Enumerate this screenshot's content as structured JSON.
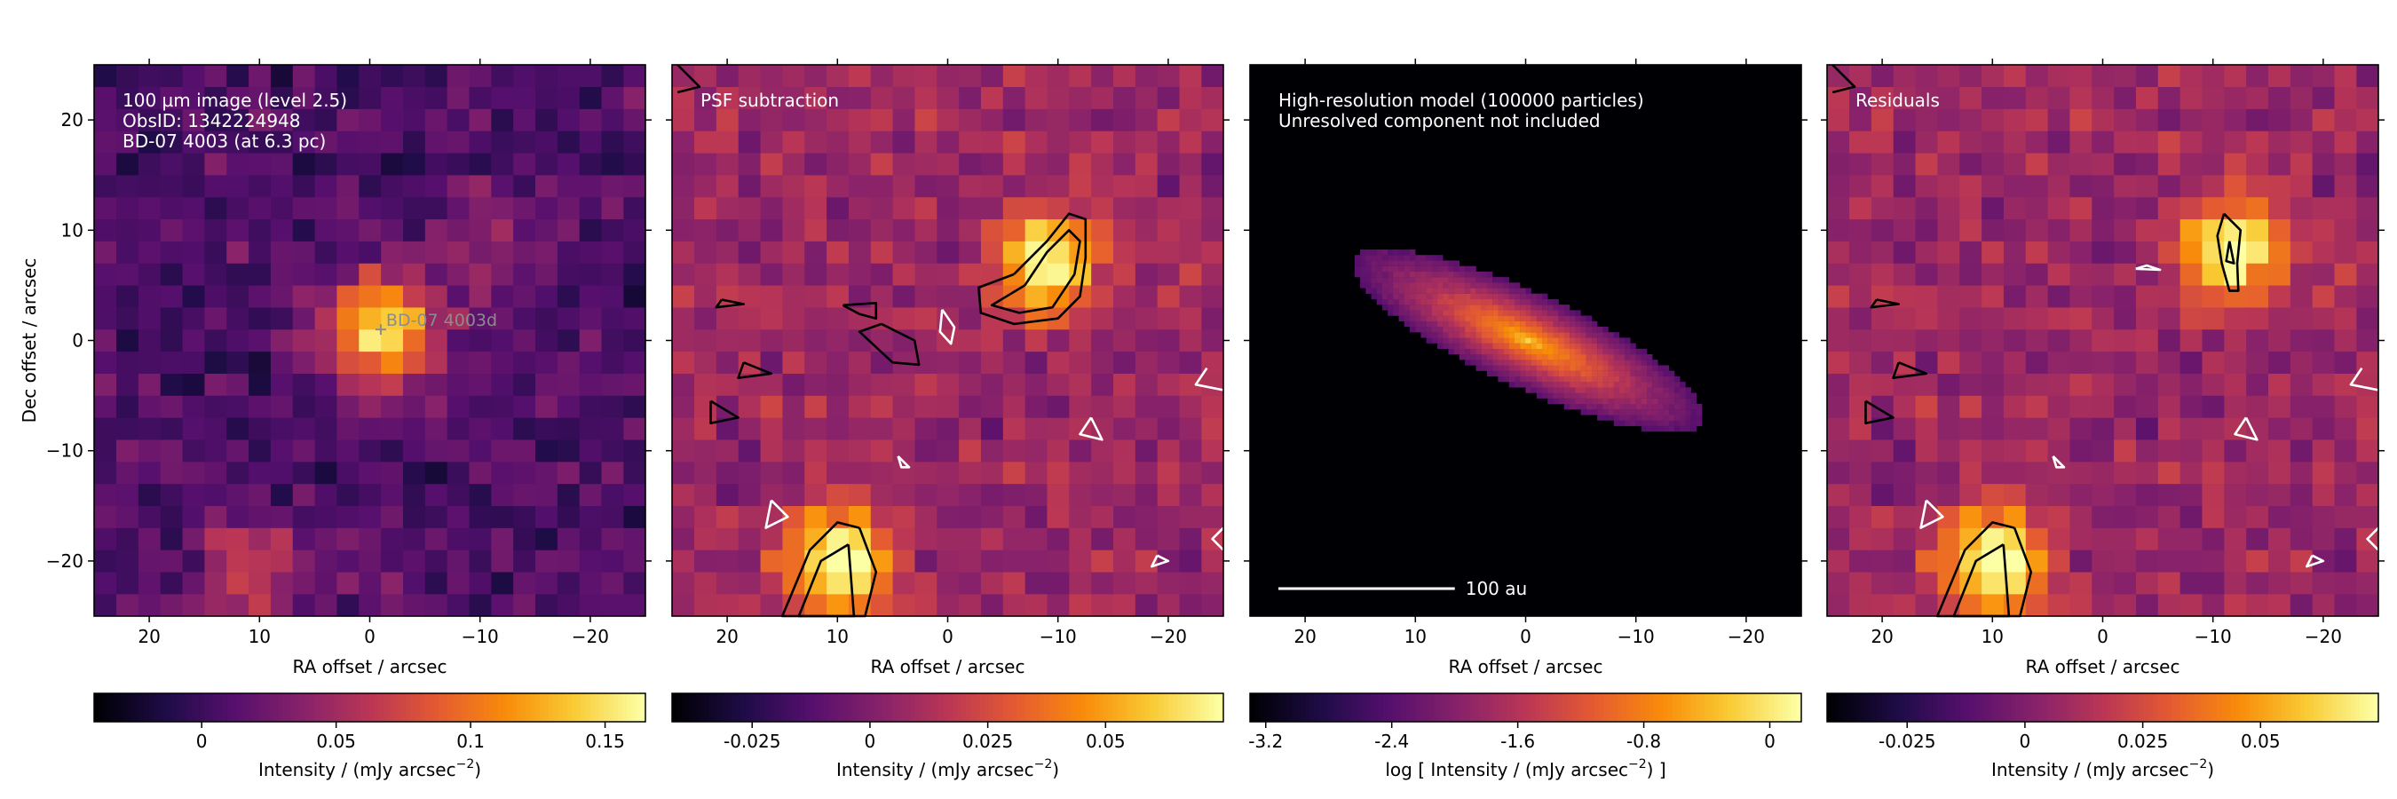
{
  "chart_data": [
    {
      "type": "heatmap",
      "panel": "observed image",
      "annotation_lines": [
        "100 µm image (level 2.5)",
        "ObsID: 1342224948",
        "BD-07 4003 (at 6.3 pc)"
      ],
      "source_marker_label": "BD-07  4003d",
      "source_marker_position": [
        -1,
        1
      ],
      "xlabel": "RA offset / arcsec",
      "ylabel": "Dec offset / arcsec",
      "xlim": [
        25,
        -25
      ],
      "ylim": [
        -25,
        25
      ],
      "xticks": [
        20,
        10,
        0,
        -10,
        -20
      ],
      "xtick_labels": [
        "20",
        "10",
        "0",
        "−10",
        "−20"
      ],
      "yticks": [
        20,
        10,
        0,
        -10,
        -20
      ],
      "ytick_labels": [
        "20",
        "10",
        "0",
        "−10",
        "−20"
      ],
      "pixel_size_arcsec": 2,
      "colormap": "inferno",
      "features": [
        {
          "description": "bright compact source",
          "ra": -1,
          "dec": 1,
          "peak": 0.165
        },
        {
          "description": "secondary emission",
          "ra": 11,
          "dec": -21,
          "peak": 0.09
        },
        {
          "description": "faint extension",
          "ra": -11,
          "dec": 8,
          "peak": 0.06
        }
      ],
      "colorbar": {
        "label": "Intensity / (mJy arcsec",
        "label_superscript": "−2",
        "label_suffix": ")",
        "range": [
          -0.04,
          0.165
        ],
        "ticks": [
          0,
          0.05,
          0.1,
          0.15
        ],
        "tick_labels": [
          "0",
          "0.05",
          "0.1",
          "0.15"
        ]
      }
    },
    {
      "type": "heatmap",
      "panel": "PSF subtraction",
      "annotation_lines": [
        "PSF subtraction"
      ],
      "xlabel": "RA offset / arcsec",
      "xlim": [
        25,
        -25
      ],
      "ylim": [
        -25,
        25
      ],
      "xticks": [
        20,
        10,
        0,
        -10,
        -20
      ],
      "xtick_labels": [
        "20",
        "10",
        "0",
        "−10",
        "−20"
      ],
      "pixel_size_arcsec": 2,
      "colormap": "inferno",
      "features": [
        {
          "description": "residual blob",
          "ra": -9,
          "dec": 7,
          "peak": 0.07
        },
        {
          "description": "residual blob",
          "ra": 10,
          "dec": -20,
          "peak": 0.07
        }
      ],
      "contours": [
        {
          "color": "black",
          "path": [
            [
              -6,
              6
            ],
            [
              -9,
              9
            ],
            [
              -11,
              11.5
            ],
            [
              -12.5,
              11
            ],
            [
              -12.5,
              7.5
            ],
            [
              -12,
              4
            ],
            [
              -10,
              2
            ],
            [
              -6,
              1.5
            ],
            [
              -3,
              2.5
            ],
            [
              -2.8,
              4.8
            ],
            [
              -6,
              6
            ]
          ]
        },
        {
          "color": "black",
          "path": [
            [
              -7,
              5
            ],
            [
              -9,
              8
            ],
            [
              -11,
              10
            ],
            [
              -12,
              9
            ],
            [
              -11.5,
              6
            ],
            [
              -9.5,
              3
            ],
            [
              -6.5,
              2.5
            ],
            [
              -4,
              3.2
            ],
            [
              -7,
              5
            ]
          ]
        },
        {
          "color": "black",
          "path": [
            [
              8,
              -17
            ],
            [
              10,
              -16.5
            ],
            [
              12.5,
              -19
            ],
            [
              15,
              -25
            ],
            [
              7.5,
              -25
            ],
            [
              6.5,
              -21
            ],
            [
              8,
              -17
            ]
          ]
        },
        {
          "color": "black",
          "path": [
            [
              9,
              -18.5
            ],
            [
              11.5,
              -20
            ],
            [
              13.5,
              -25
            ],
            [
              8.5,
              -25
            ],
            [
              9,
              -18.5
            ]
          ]
        },
        {
          "color": "black",
          "path": [
            [
              6,
              1.5
            ],
            [
              3,
              0
            ],
            [
              2.6,
              -2.2
            ],
            [
              5,
              -2
            ],
            [
              8,
              0.8
            ],
            [
              6,
              1.5
            ]
          ]
        },
        {
          "color": "black",
          "path": [
            [
              9.5,
              3.2
            ],
            [
              6.5,
              3.4
            ],
            [
              6.5,
              2
            ],
            [
              8,
              2.4
            ],
            [
              9.5,
              3.2
            ]
          ]
        },
        {
          "color": "black",
          "path": [
            [
              20.5,
              3.7
            ],
            [
              18.5,
              3.3
            ],
            [
              21,
              3
            ],
            [
              20.5,
              3.7
            ]
          ]
        },
        {
          "color": "black",
          "path": [
            [
              18.5,
              -2
            ],
            [
              16,
              -3
            ],
            [
              19,
              -3.4
            ],
            [
              18.5,
              -2
            ]
          ]
        },
        {
          "color": "black",
          "path": [
            [
              21.5,
              -5.5
            ],
            [
              19,
              -7
            ],
            [
              21.5,
              -7.5
            ],
            [
              21.5,
              -5.5
            ]
          ]
        },
        {
          "color": "black",
          "path": [
            [
              24.5,
              25
            ],
            [
              22.5,
              23
            ],
            [
              24.5,
              22.5
            ]
          ]
        },
        {
          "color": "white",
          "path": [
            [
              0.5,
              2.8
            ],
            [
              -0.6,
              1.2
            ],
            [
              -0.3,
              -0.3
            ],
            [
              0.7,
              0.8
            ],
            [
              0.5,
              2.8
            ]
          ]
        },
        {
          "color": "white",
          "path": [
            [
              16,
              -14.5
            ],
            [
              14.5,
              -16
            ],
            [
              16.5,
              -17
            ],
            [
              16,
              -14.5
            ]
          ]
        },
        {
          "color": "white",
          "path": [
            [
              4.5,
              -10.5
            ],
            [
              3.5,
              -11.5
            ],
            [
              4.2,
              -11.5
            ],
            [
              4.5,
              -10.5
            ]
          ]
        },
        {
          "color": "white",
          "path": [
            [
              -13,
              -7
            ],
            [
              -12,
              -8.5
            ],
            [
              -14,
              -9
            ],
            [
              -13,
              -7
            ]
          ]
        },
        {
          "color": "white",
          "path": [
            [
              -23.5,
              -2.5
            ],
            [
              -22.5,
              -4
            ],
            [
              -25,
              -4.5
            ]
          ]
        },
        {
          "color": "white",
          "path": [
            [
              -19,
              -19.5
            ],
            [
              -20,
              -20
            ],
            [
              -18.5,
              -20.5
            ],
            [
              -19,
              -19.5
            ]
          ]
        },
        {
          "color": "white",
          "path": [
            [
              -25,
              -17
            ],
            [
              -24,
              -18
            ],
            [
              -25,
              -19
            ]
          ]
        }
      ],
      "colorbar": {
        "label": "Intensity / (mJy arcsec",
        "label_superscript": "−2",
        "label_suffix": ")",
        "range": [
          -0.042,
          0.075
        ],
        "ticks": [
          -0.025,
          0,
          0.025,
          0.05
        ],
        "tick_labels": [
          "-0.025",
          "0",
          "0.025",
          "0.05"
        ]
      }
    },
    {
      "type": "heatmap",
      "panel": "high-resolution model",
      "annotation_lines": [
        "High-resolution model (100000 particles)",
        "Unresolved component not included"
      ],
      "scalebar_label": "100 au",
      "scalebar_length_arcsec": 16,
      "xlabel": "RA offset / arcsec",
      "xlim": [
        25,
        -25
      ],
      "ylim": [
        -25,
        25
      ],
      "xticks": [
        20,
        10,
        0,
        -10,
        -20
      ],
      "xtick_labels": [
        "20",
        "10",
        "0",
        "−10",
        "−20"
      ],
      "colormap": "inferno",
      "disc_model": {
        "center": [
          0,
          0
        ],
        "semi_major_arcsec": 17.5,
        "semi_minor_arcsec": 4.3,
        "position_angle_deg": 25
      },
      "colorbar": {
        "label": "log [ Intensity / (mJy arcsec",
        "label_superscript": "−2",
        "label_suffix": ") ]",
        "range": [
          -3.3,
          0.2
        ],
        "ticks": [
          -3.2,
          -2.4,
          -1.6,
          -0.8,
          0
        ],
        "tick_labels": [
          "-3.2",
          "-2.4",
          "-1.6",
          "-0.8",
          "0"
        ]
      }
    },
    {
      "type": "heatmap",
      "panel": "residuals",
      "annotation_lines": [
        "Residuals"
      ],
      "xlabel": "RA offset / arcsec",
      "xlim": [
        25,
        -25
      ],
      "ylim": [
        -25,
        25
      ],
      "xticks": [
        20,
        10,
        0,
        -10,
        -20
      ],
      "xtick_labels": [
        "20",
        "10",
        "0",
        "−10",
        "−20"
      ],
      "pixel_size_arcsec": 2,
      "colormap": "inferno",
      "features": [
        {
          "description": "residual blob",
          "ra": -11.5,
          "dec": 8,
          "peak": 0.07
        },
        {
          "description": "residual blob",
          "ra": 10,
          "dec": -20,
          "peak": 0.07
        }
      ],
      "contours": [
        {
          "color": "black",
          "path": [
            [
              -11,
              11.5
            ],
            [
              -12.5,
              10
            ],
            [
              -12.2,
              7
            ],
            [
              -12.3,
              4.5
            ],
            [
              -11.5,
              4.5
            ],
            [
              -10.8,
              7
            ],
            [
              -10.4,
              9.5
            ],
            [
              -11,
              11.5
            ]
          ]
        },
        {
          "color": "black",
          "path": [
            [
              -11.5,
              9
            ],
            [
              -11.9,
              7
            ],
            [
              -11.2,
              7.2
            ],
            [
              -11.5,
              9
            ]
          ]
        },
        {
          "color": "black",
          "path": [
            [
              8,
              -17
            ],
            [
              10,
              -16.5
            ],
            [
              12.5,
              -19
            ],
            [
              15,
              -25
            ],
            [
              7.5,
              -25
            ],
            [
              6.5,
              -21
            ],
            [
              8,
              -17
            ]
          ]
        },
        {
          "color": "black",
          "path": [
            [
              9,
              -18.5
            ],
            [
              11.5,
              -20
            ],
            [
              13.5,
              -25
            ],
            [
              8.5,
              -25
            ],
            [
              9,
              -18.5
            ]
          ]
        },
        {
          "color": "black",
          "path": [
            [
              20.5,
              3.7
            ],
            [
              18.5,
              3.3
            ],
            [
              21,
              3
            ],
            [
              20.5,
              3.7
            ]
          ]
        },
        {
          "color": "black",
          "path": [
            [
              18.5,
              -2
            ],
            [
              16,
              -3
            ],
            [
              19,
              -3.4
            ],
            [
              18.5,
              -2
            ]
          ]
        },
        {
          "color": "black",
          "path": [
            [
              21.5,
              -5.5
            ],
            [
              19,
              -7
            ],
            [
              21.5,
              -7.5
            ],
            [
              21.5,
              -5.5
            ]
          ]
        },
        {
          "color": "black",
          "path": [
            [
              24.5,
              25
            ],
            [
              22.5,
              23
            ],
            [
              24.5,
              22.5
            ]
          ]
        },
        {
          "color": "white",
          "path": [
            [
              -3,
              6.5
            ],
            [
              -4,
              6.8
            ],
            [
              -5.2,
              6.4
            ],
            [
              -3,
              6.5
            ]
          ]
        },
        {
          "color": "white",
          "path": [
            [
              16,
              -14.5
            ],
            [
              14.5,
              -16
            ],
            [
              16.5,
              -17
            ],
            [
              16,
              -14.5
            ]
          ]
        },
        {
          "color": "white",
          "path": [
            [
              4.5,
              -10.5
            ],
            [
              3.5,
              -11.5
            ],
            [
              4.2,
              -11.5
            ],
            [
              4.5,
              -10.5
            ]
          ]
        },
        {
          "color": "white",
          "path": [
            [
              -13,
              -7
            ],
            [
              -12,
              -8.5
            ],
            [
              -14,
              -9
            ],
            [
              -13,
              -7
            ]
          ]
        },
        {
          "color": "white",
          "path": [
            [
              -23.5,
              -2.5
            ],
            [
              -22.5,
              -4
            ],
            [
              -25,
              -4.5
            ]
          ]
        },
        {
          "color": "white",
          "path": [
            [
              -19,
              -19.5
            ],
            [
              -20,
              -20
            ],
            [
              -18.5,
              -20.5
            ],
            [
              -19,
              -19.5
            ]
          ]
        },
        {
          "color": "white",
          "path": [
            [
              -25,
              -17
            ],
            [
              -24,
              -18
            ],
            [
              -25,
              -19
            ]
          ]
        }
      ],
      "colorbar": {
        "label": "Intensity / (mJy arcsec",
        "label_superscript": "−2",
        "label_suffix": ")",
        "range": [
          -0.042,
          0.075
        ],
        "ticks": [
          -0.025,
          0,
          0.025,
          0.05
        ],
        "tick_labels": [
          "-0.025",
          "0",
          "0.025",
          "0.05"
        ]
      }
    }
  ]
}
